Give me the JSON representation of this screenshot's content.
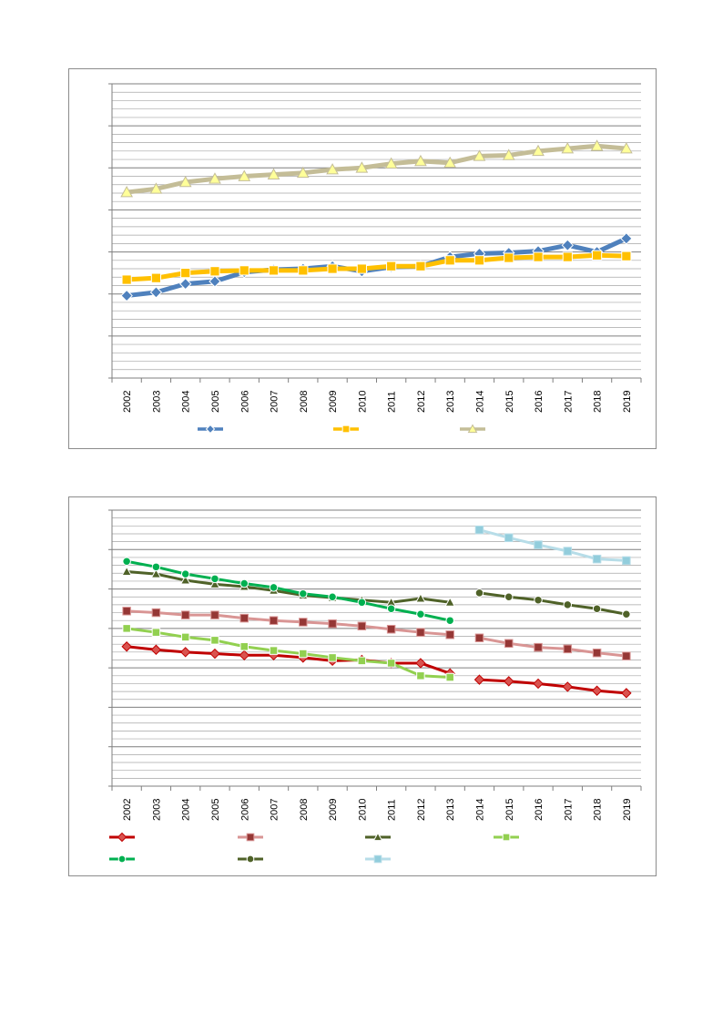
{
  "chart_data": [
    {
      "type": "line",
      "title": "",
      "xlabel": "",
      "ylabel": "",
      "categories": [
        "2002",
        "2003",
        "2004",
        "2005",
        "2006",
        "2007",
        "2008",
        "2009",
        "2010",
        "2011",
        "2012",
        "2013",
        "2014",
        "2015",
        "2016",
        "2017",
        "2018",
        "2019"
      ],
      "ylim": [
        0,
        35
      ],
      "grid": true,
      "legend": "bottom",
      "series": [
        {
          "color": "#4f81bd",
          "marker": "diamond",
          "values": [
            9.8,
            10.2,
            11.2,
            11.5,
            12.6,
            12.9,
            13.0,
            13.3,
            12.7,
            13.2,
            13.3,
            14.4,
            14.8,
            14.9,
            15.1,
            15.8,
            15.0,
            16.6
          ]
        },
        {
          "color": "#ffc000",
          "marker": "square",
          "values": [
            11.7,
            11.9,
            12.5,
            12.7,
            12.8,
            12.8,
            12.8,
            13.0,
            13.0,
            13.3,
            13.3,
            14.0,
            14.0,
            14.3,
            14.4,
            14.4,
            14.6,
            14.5
          ]
        },
        {
          "color": "#c4bd97",
          "marker_fill": "#ffff99",
          "marker": "triangle",
          "values": [
            22.1,
            22.5,
            23.3,
            23.7,
            24.0,
            24.2,
            24.4,
            24.8,
            25.0,
            25.5,
            25.8,
            25.6,
            26.4,
            26.5,
            27.0,
            27.3,
            27.6,
            27.3
          ]
        }
      ]
    },
    {
      "type": "line",
      "title": "",
      "xlabel": "",
      "ylabel": "",
      "categories": [
        "2002",
        "2003",
        "2004",
        "2005",
        "2006",
        "2007",
        "2008",
        "2009",
        "2010",
        "2011",
        "2012",
        "2013",
        "2014",
        "2015",
        "2016",
        "2017",
        "2018",
        "2019"
      ],
      "ylim": [
        0,
        35
      ],
      "grid": true,
      "legend": "bottom",
      "series": [
        {
          "color": "#c00000",
          "marker_fill": "#d9534f",
          "marker": "diamond",
          "segments": [
            [
              0,
              11
            ],
            [
              12,
              17
            ]
          ],
          "values": [
            17.7,
            17.3,
            17.0,
            16.8,
            16.6,
            16.6,
            16.3,
            15.9,
            16.0,
            15.6,
            15.6,
            14.3,
            13.5,
            13.3,
            13.0,
            12.6,
            12.1,
            11.8
          ]
        },
        {
          "color": "#d99594",
          "marker_fill": "#953735",
          "marker": "square",
          "segments": [
            [
              0,
              11
            ],
            [
              12,
              17
            ]
          ],
          "values": [
            22.2,
            22.0,
            21.7,
            21.7,
            21.3,
            21.0,
            20.8,
            20.6,
            20.3,
            19.9,
            19.5,
            19.2,
            18.8,
            18.1,
            17.6,
            17.4,
            16.9,
            16.5
          ]
        },
        {
          "color": "#4f6228",
          "marker": "triangle",
          "segments": [
            [
              0,
              11
            ]
          ],
          "values": [
            27.2,
            26.9,
            26.1,
            25.6,
            25.3,
            24.8,
            24.2,
            23.9,
            23.6,
            23.3,
            23.8,
            23.3,
            null,
            null,
            null,
            null,
            null,
            null
          ]
        },
        {
          "color": "#92d050",
          "marker": "square",
          "segments": [
            [
              0,
              11
            ]
          ],
          "values": [
            20.0,
            19.5,
            18.9,
            18.5,
            17.7,
            17.2,
            16.8,
            16.3,
            15.9,
            15.6,
            14.0,
            13.8,
            null,
            null,
            null,
            null,
            null,
            null
          ]
        },
        {
          "color": "#00b050",
          "marker": "circle",
          "segments": [
            [
              0,
              11
            ]
          ],
          "values": [
            28.5,
            27.8,
            26.9,
            26.3,
            25.7,
            25.2,
            24.4,
            24.0,
            23.3,
            22.5,
            21.8,
            21.0,
            null,
            null,
            null,
            null,
            null,
            null
          ]
        },
        {
          "color": "#4f6228",
          "marker": "circle",
          "segments": [
            [
              12,
              17
            ]
          ],
          "values": [
            null,
            null,
            null,
            null,
            null,
            null,
            null,
            null,
            null,
            null,
            null,
            null,
            24.5,
            24.0,
            23.6,
            23.0,
            22.5,
            21.8
          ]
        },
        {
          "color": "#b7dde8",
          "marker_fill": "#92cddc",
          "marker": "square",
          "segments": [
            [
              12,
              17
            ]
          ],
          "values": [
            null,
            null,
            null,
            null,
            null,
            null,
            null,
            null,
            null,
            null,
            null,
            null,
            32.5,
            31.5,
            30.6,
            29.8,
            28.8,
            28.6
          ]
        }
      ]
    }
  ]
}
